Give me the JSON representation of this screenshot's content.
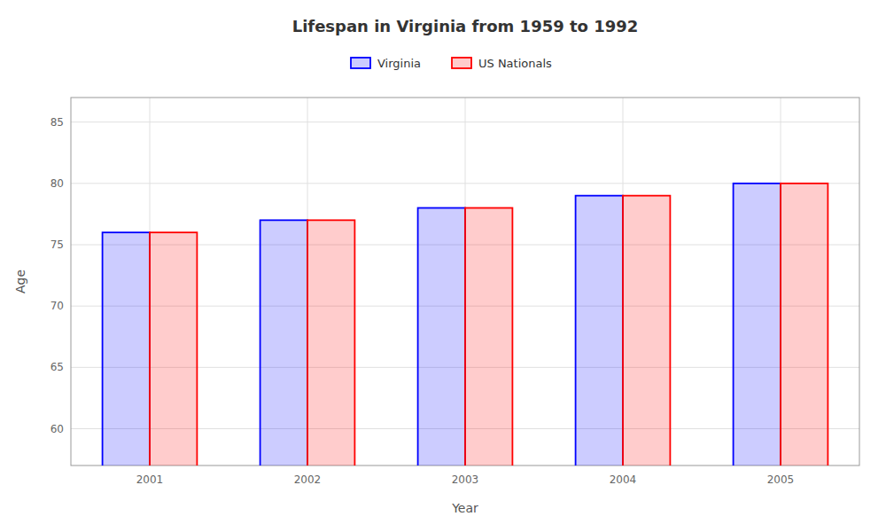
{
  "chart_data": {
    "type": "bar",
    "title": "Lifespan in Virginia from 1959 to 1992",
    "xlabel": "Year",
    "ylabel": "Age",
    "categories": [
      "2001",
      "2002",
      "2003",
      "2004",
      "2005"
    ],
    "series": [
      {
        "name": "Virginia",
        "color": "#0000ff",
        "values": [
          76,
          77,
          78,
          79,
          80
        ]
      },
      {
        "name": "US Nationals",
        "color": "#ff0000",
        "values": [
          76,
          77,
          78,
          79,
          80
        ]
      }
    ],
    "ylim": [
      57,
      87
    ],
    "yticks": [
      60,
      65,
      70,
      75,
      80,
      85
    ],
    "grid": true,
    "legend": "top"
  }
}
